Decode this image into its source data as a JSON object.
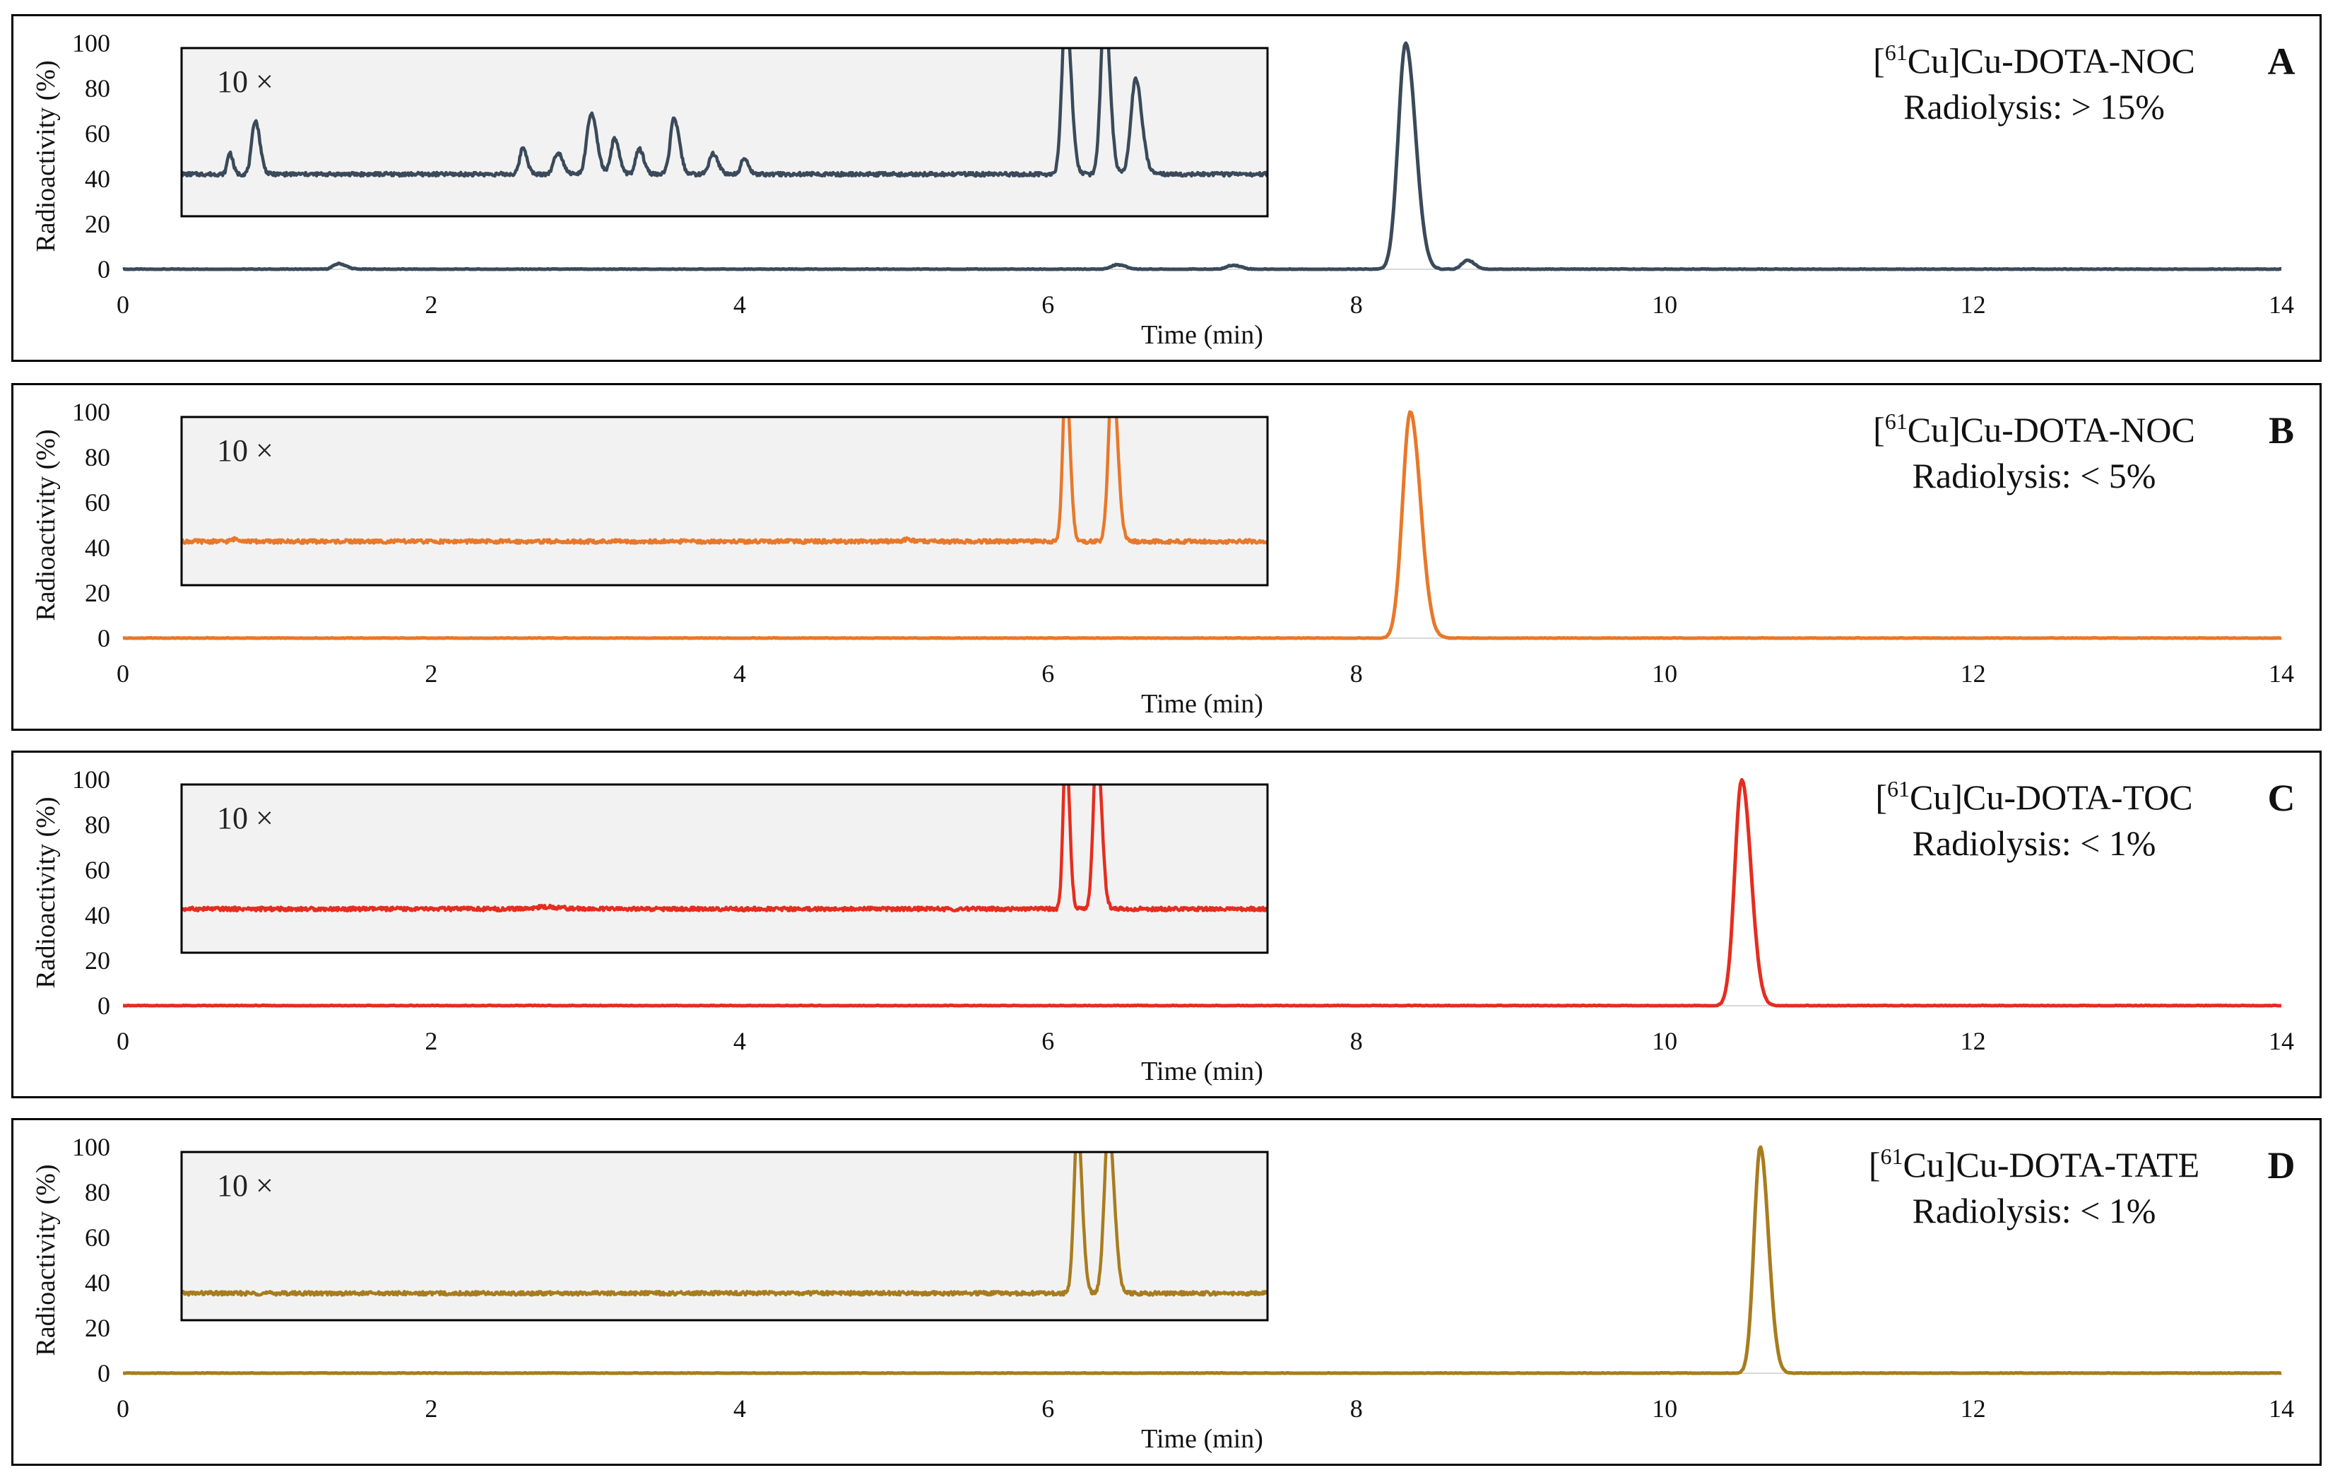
{
  "chart_data": [
    {
      "type": "line",
      "panel_letter": "A",
      "compound": "[61Cu]Cu-DOTA-NOC",
      "compound_prefix": "[",
      "compound_sup": "61",
      "compound_rest": "Cu]Cu-DOTA-NOC",
      "radiolysis": "Radiolysis: > 15%",
      "xlabel": "Time (min)",
      "ylabel": "Radioactivity (%)",
      "xlim": [
        0,
        14
      ],
      "ylim": [
        0,
        100
      ],
      "x_ticks": [
        "0",
        "2",
        "4",
        "6",
        "8",
        "10",
        "12",
        "14"
      ],
      "y_ticks": [
        "0",
        "20",
        "40",
        "60",
        "80",
        "100"
      ],
      "color": "#3a4a5a",
      "inset_label": "10 ×",
      "inset_xlim": [
        0,
        14
      ],
      "main_peaks": [
        {
          "t": 1.4,
          "h": 2.5,
          "w": 0.035
        },
        {
          "t": 6.45,
          "h": 2.0,
          "w": 0.04
        },
        {
          "t": 7.2,
          "h": 1.8,
          "w": 0.04
        },
        {
          "t": 8.32,
          "h": 100,
          "w": 0.048
        },
        {
          "t": 8.72,
          "h": 4.0,
          "w": 0.035
        }
      ],
      "inset_baseline": 25,
      "inset_peaks": [
        {
          "t": 0.62,
          "h": 13,
          "w": 0.03
        },
        {
          "t": 0.95,
          "h": 32,
          "w": 0.045
        },
        {
          "t": 4.4,
          "h": 16,
          "w": 0.04
        },
        {
          "t": 4.85,
          "h": 13,
          "w": 0.05
        },
        {
          "t": 5.28,
          "h": 36,
          "w": 0.055
        },
        {
          "t": 5.58,
          "h": 21,
          "w": 0.045
        },
        {
          "t": 5.9,
          "h": 15,
          "w": 0.045
        },
        {
          "t": 6.35,
          "h": 33,
          "w": 0.05
        },
        {
          "t": 6.85,
          "h": 12,
          "w": 0.05
        },
        {
          "t": 7.25,
          "h": 10,
          "w": 0.04
        },
        {
          "t": 11.4,
          "h": 100,
          "w": 0.05
        },
        {
          "t": 11.9,
          "h": 100,
          "w": 0.05
        },
        {
          "t": 12.3,
          "h": 57,
          "w": 0.06
        }
      ]
    },
    {
      "type": "line",
      "panel_letter": "B",
      "compound": "[61Cu]Cu-DOTA-NOC",
      "compound_prefix": "[",
      "compound_sup": "61",
      "compound_rest": "Cu]Cu-DOTA-NOC",
      "radiolysis": "Radiolysis: < 5%",
      "xlabel": "Time (min)",
      "ylabel": "Radioactivity (%)",
      "xlim": [
        0,
        14
      ],
      "ylim": [
        0,
        100
      ],
      "x_ticks": [
        "0",
        "2",
        "4",
        "6",
        "8",
        "10",
        "12",
        "14"
      ],
      "y_ticks": [
        "0",
        "20",
        "40",
        "60",
        "80",
        "100"
      ],
      "color": "#e8782a",
      "inset_label": "10 ×",
      "inset_xlim": [
        0,
        14
      ],
      "main_peaks": [
        {
          "t": 8.35,
          "h": 100,
          "w": 0.05
        }
      ],
      "inset_baseline": 26,
      "inset_peaks": [
        {
          "t": 0.7,
          "h": 1.5,
          "w": 0.05
        },
        {
          "t": 9.35,
          "h": 1.2,
          "w": 0.05
        },
        {
          "t": 11.4,
          "h": 100,
          "w": 0.04
        },
        {
          "t": 12.0,
          "h": 100,
          "w": 0.05
        }
      ]
    },
    {
      "type": "line",
      "panel_letter": "C",
      "compound": "[61Cu]Cu-DOTA-TOC",
      "compound_prefix": "[",
      "compound_sup": "61",
      "compound_rest": "Cu]Cu-DOTA-TOC",
      "radiolysis": "Radiolysis: < 1%",
      "xlabel": "Time (min)",
      "ylabel": "Radioactivity (%)",
      "xlim": [
        0,
        14
      ],
      "ylim": [
        0,
        100
      ],
      "x_ticks": [
        "0",
        "2",
        "4",
        "6",
        "8",
        "10",
        "12",
        "14"
      ],
      "y_ticks": [
        "0",
        "20",
        "40",
        "60",
        "80",
        "100"
      ],
      "color": "#e52d1f",
      "inset_label": "10 ×",
      "inset_xlim": [
        0,
        14
      ],
      "main_peaks": [
        {
          "t": 10.5,
          "h": 100,
          "w": 0.045
        }
      ],
      "inset_baseline": 26,
      "inset_peaks": [
        {
          "t": 4.7,
          "h": 1.2,
          "w": 0.15
        },
        {
          "t": 11.4,
          "h": 100,
          "w": 0.035
        },
        {
          "t": 11.8,
          "h": 100,
          "w": 0.045
        }
      ]
    },
    {
      "type": "line",
      "panel_letter": "D",
      "compound": "[61Cu]Cu-DOTA-TATE",
      "compound_prefix": "[",
      "compound_sup": "61",
      "compound_rest": "Cu]Cu-DOTA-TATE",
      "radiolysis": "Radiolysis: < 1%",
      "xlabel": "Time (min)",
      "ylabel": "Radioactivity (%)",
      "xlim": [
        0,
        14
      ],
      "ylim": [
        0,
        100
      ],
      "x_ticks": [
        "0",
        "2",
        "4",
        "6",
        "8",
        "10",
        "12",
        "14"
      ],
      "y_ticks": [
        "0",
        "20",
        "40",
        "60",
        "80",
        "100"
      ],
      "color": "#a87c1e",
      "inset_label": "10 ×",
      "inset_xlim": [
        0,
        14
      ],
      "main_peaks": [
        {
          "t": 10.62,
          "h": 100,
          "w": 0.04
        }
      ],
      "inset_baseline": 16,
      "inset_peaks": [
        {
          "t": 11.55,
          "h": 100,
          "w": 0.045
        },
        {
          "t": 11.95,
          "h": 100,
          "w": 0.055
        }
      ]
    }
  ]
}
